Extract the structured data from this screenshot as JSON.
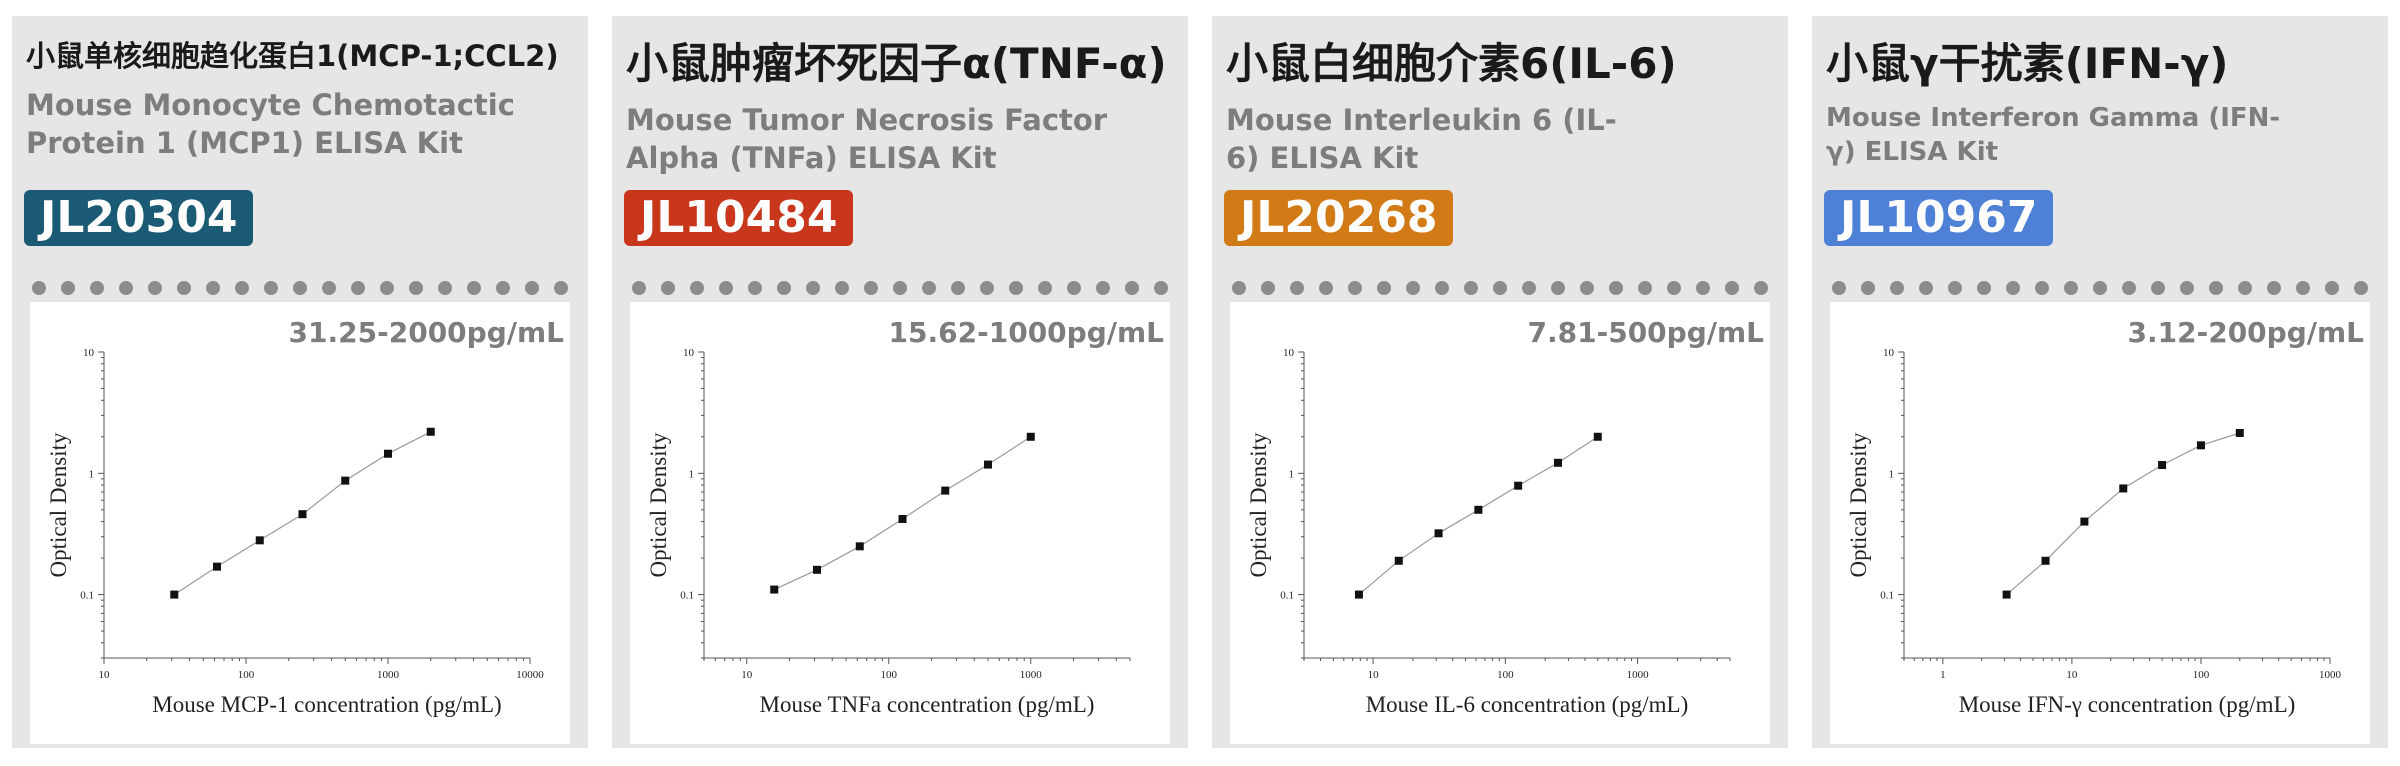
{
  "products": [
    {
      "cn_title": "小鼠单核细胞趋化蛋白1(MCP-1;CCL2)",
      "en_title": "Mouse Monocyte Chemotactic Protein 1 (MCP1) ELISA Kit",
      "code": "JL20304",
      "range": "31.25-2000pg/mL"
    },
    {
      "cn_title": "小鼠肿瘤坏死因子α(TNF-α)",
      "en_title": "Mouse Tumor Necrosis Factor Alpha (TNFa) ELISA Kit",
      "code": "JL10484",
      "range": "15.62-1000pg/mL"
    },
    {
      "cn_title": "小鼠白细胞介素6(IL-6)",
      "en_title": "Mouse Interleukin 6 (IL-6) ELISA Kit",
      "code": "JL20268",
      "range": "7.81-500pg/mL"
    },
    {
      "cn_title": "小鼠γ干扰素(IFN-γ)",
      "en_title": "Mouse Interferon Gamma (IFN-γ) ELISA Kit",
      "code": "JL10967",
      "range": "3.12-200pg/mL"
    }
  ],
  "colors": {
    "badge_1": "#1b5a74",
    "badge_2": "#c8361b",
    "badge_3": "#d27a16",
    "badge_4": "#4e80d6",
    "card_bg": "#e6e6e7",
    "dot": "#8c8c8c"
  },
  "chart_data": [
    {
      "type": "line",
      "xscale": "log",
      "yscale": "log",
      "xlabel": "Mouse MCP-1 concentration (pg/mL)",
      "ylabel": "Optical Density",
      "xlim": [
        10,
        10000
      ],
      "ylim": [
        0.03,
        10
      ],
      "xticks": [
        {
          "v": 10,
          "label": "10"
        },
        {
          "v": 100,
          "label": "100"
        },
        {
          "v": 1000,
          "label": "1000"
        },
        {
          "v": 10000,
          "label": "10000"
        }
      ],
      "yticks": [
        {
          "v": 0.1,
          "label": "0.1"
        },
        {
          "v": 1,
          "label": "1"
        },
        {
          "v": 10,
          "label": "10"
        }
      ],
      "x": [
        31.25,
        62.5,
        125,
        250,
        500,
        1000,
        2000
      ],
      "y": [
        0.1,
        0.17,
        0.28,
        0.46,
        0.87,
        1.45,
        2.2
      ]
    },
    {
      "type": "line",
      "xscale": "log",
      "yscale": "log",
      "xlabel": "Mouse TNFa concentration (pg/mL)",
      "ylabel": "Optical Density",
      "xlim": [
        5,
        5000
      ],
      "ylim": [
        0.03,
        10
      ],
      "xticks": [
        {
          "v": 10,
          "label": "10"
        },
        {
          "v": 100,
          "label": "100"
        },
        {
          "v": 1000,
          "label": "1000"
        }
      ],
      "yticks": [
        {
          "v": 0.1,
          "label": "0.1"
        },
        {
          "v": 1,
          "label": "1"
        },
        {
          "v": 10,
          "label": "10"
        }
      ],
      "x": [
        15.62,
        31.25,
        62.5,
        125,
        250,
        500,
        1000
      ],
      "y": [
        0.11,
        0.16,
        0.25,
        0.42,
        0.72,
        1.18,
        2.0
      ]
    },
    {
      "type": "line",
      "xscale": "log",
      "yscale": "log",
      "xlabel": "Mouse IL-6 concentration (pg/mL)",
      "ylabel": "Optical Density",
      "xlim": [
        3,
        5000
      ],
      "ylim": [
        0.03,
        10
      ],
      "xticks": [
        {
          "v": 10,
          "label": "10"
        },
        {
          "v": 100,
          "label": "100"
        },
        {
          "v": 1000,
          "label": "1000"
        }
      ],
      "yticks": [
        {
          "v": 0.1,
          "label": "0.1"
        },
        {
          "v": 1,
          "label": "1"
        },
        {
          "v": 10,
          "label": "10"
        }
      ],
      "x": [
        7.81,
        15.62,
        31.25,
        62.5,
        125,
        250,
        500
      ],
      "y": [
        0.1,
        0.19,
        0.32,
        0.5,
        0.79,
        1.22,
        2.0
      ]
    },
    {
      "type": "line",
      "xscale": "log",
      "yscale": "log",
      "xlabel": "Mouse IFN-γ concentration (pg/mL)",
      "ylabel": "Optical Density",
      "xlim": [
        0.5,
        1000
      ],
      "ylim": [
        0.03,
        10
      ],
      "xticks": [
        {
          "v": 1,
          "label": "1"
        },
        {
          "v": 10,
          "label": "10"
        },
        {
          "v": 100,
          "label": "100"
        },
        {
          "v": 1000,
          "label": "1000"
        }
      ],
      "yticks": [
        {
          "v": 0.1,
          "label": "0.1"
        },
        {
          "v": 1,
          "label": "1"
        },
        {
          "v": 10,
          "label": "10"
        }
      ],
      "x": [
        3.12,
        6.25,
        12.5,
        25,
        50,
        100,
        200
      ],
      "y": [
        0.1,
        0.19,
        0.4,
        0.75,
        1.17,
        1.7,
        2.15
      ]
    }
  ]
}
